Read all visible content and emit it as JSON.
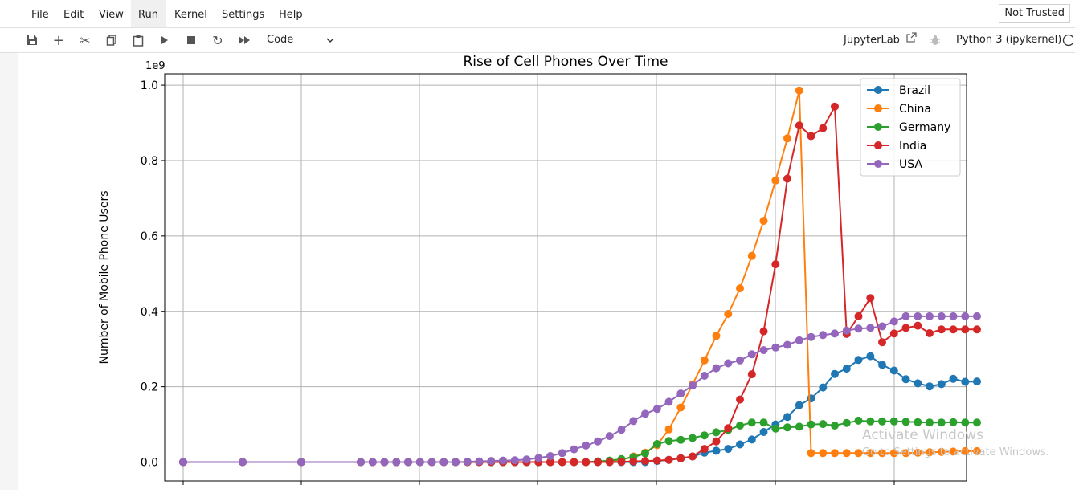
{
  "menu": {
    "items": [
      "File",
      "Edit",
      "View",
      "Run",
      "Kernel",
      "Settings",
      "Help"
    ],
    "active": "Run",
    "trust_label": "Not Trusted"
  },
  "toolbar": {
    "cell_type": "Code",
    "jupyterlab_label": "JupyterLab",
    "kernel_label": "Python 3 (ipykernel)"
  },
  "watermark": {
    "line1": "Activate Windows",
    "line2": "Go to Settings to activate Windows."
  },
  "chart_data": {
    "type": "line",
    "title": "Rise of Cell Phones Over Time",
    "ylabel": "Number of Mobile Phone Users",
    "xlabel": "",
    "y_offset_label": "1e9",
    "ylim": [
      -0.05,
      1.03
    ],
    "yticks": [
      "0.0",
      "0.2",
      "0.4",
      "0.6",
      "0.8",
      "1.0"
    ],
    "grid": true,
    "legend": "top-right",
    "marker": "circle",
    "series": [
      {
        "name": "Brazil",
        "color": "#1f77b4",
        "values": [
          0,
          0,
          0,
          0,
          0,
          0,
          0,
          0,
          0,
          0,
          0,
          0,
          0,
          0,
          0,
          0,
          0,
          0,
          0,
          0,
          0,
          0,
          0,
          0,
          0,
          0,
          0,
          0,
          0.003,
          0.006,
          0.01,
          0.015,
          0.025,
          0.03,
          0.035,
          0.047,
          0.06,
          0.08,
          0.1,
          0.12,
          0.151,
          0.169,
          0.198,
          0.234,
          0.248,
          0.271,
          0.281,
          0.258,
          0.243,
          0.22,
          0.209,
          0.201,
          0.207,
          0.221,
          0.213,
          0.214
        ]
      },
      {
        "name": "China",
        "color": "#ff7f0e",
        "values": [
          0,
          0,
          0,
          0,
          0,
          0,
          0,
          0,
          0,
          0,
          0,
          0,
          0,
          0,
          0,
          0,
          0,
          0,
          0,
          0,
          0,
          0,
          0,
          0.001,
          0.003,
          0.006,
          0.015,
          0.025,
          0.045,
          0.087,
          0.145,
          0.206,
          0.27,
          0.335,
          0.393,
          0.461,
          0.547,
          0.64,
          0.747,
          0.859,
          0.986,
          0.024,
          0.024,
          0.024,
          0.024,
          0.024,
          0.024,
          0.024,
          0.024,
          0.024,
          0.025,
          0.026,
          0.027,
          0.028,
          0.029,
          0.029
        ]
      },
      {
        "name": "Germany",
        "color": "#2ca02c",
        "values": [
          0,
          0,
          0,
          0,
          0,
          0,
          0,
          0,
          0,
          0,
          0,
          0,
          0,
          0,
          0,
          0,
          0,
          0,
          0,
          0,
          0,
          0,
          0,
          0.002,
          0.004,
          0.008,
          0.013,
          0.023,
          0.048,
          0.056,
          0.059,
          0.064,
          0.071,
          0.079,
          0.085,
          0.097,
          0.105,
          0.105,
          0.089,
          0.092,
          0.094,
          0.1,
          0.101,
          0.097,
          0.104,
          0.11,
          0.108,
          0.108,
          0.108,
          0.107,
          0.106,
          0.105,
          0.105,
          0.106,
          0.105,
          0.105
        ]
      },
      {
        "name": "India",
        "color": "#d62728",
        "values": [
          0,
          0,
          0,
          0,
          0,
          0,
          0,
          0,
          0,
          0,
          0,
          0,
          0,
          0,
          0,
          0,
          0,
          0,
          0,
          0,
          0,
          0,
          0,
          0,
          0,
          0.001,
          0.002,
          0.003,
          0.004,
          0.006,
          0.01,
          0.015,
          0.035,
          0.055,
          0.09,
          0.166,
          0.233,
          0.347,
          0.525,
          0.752,
          0.893,
          0.865,
          0.886,
          0.943,
          0.34,
          0.387,
          0.435,
          0.318,
          0.341,
          0.356,
          0.362,
          0.342,
          0.352,
          0.352,
          0.352,
          0.352
        ]
      },
      {
        "name": "USA",
        "color": "#9467bd",
        "values": [
          0,
          0,
          0,
          0,
          0,
          0,
          0,
          0,
          0,
          0,
          0,
          0,
          0.001,
          0.002,
          0.003,
          0.004,
          0.005,
          0.007,
          0.011,
          0.016,
          0.024,
          0.034,
          0.044,
          0.055,
          0.069,
          0.086,
          0.109,
          0.128,
          0.141,
          0.16,
          0.182,
          0.203,
          0.229,
          0.249,
          0.262,
          0.27,
          0.286,
          0.297,
          0.304,
          0.311,
          0.323,
          0.332,
          0.337,
          0.341,
          0.349,
          0.354,
          0.356,
          0.36,
          0.373,
          0.387,
          0.387,
          0.387,
          0.387,
          0.387,
          0.387,
          0.387
        ]
      }
    ]
  }
}
